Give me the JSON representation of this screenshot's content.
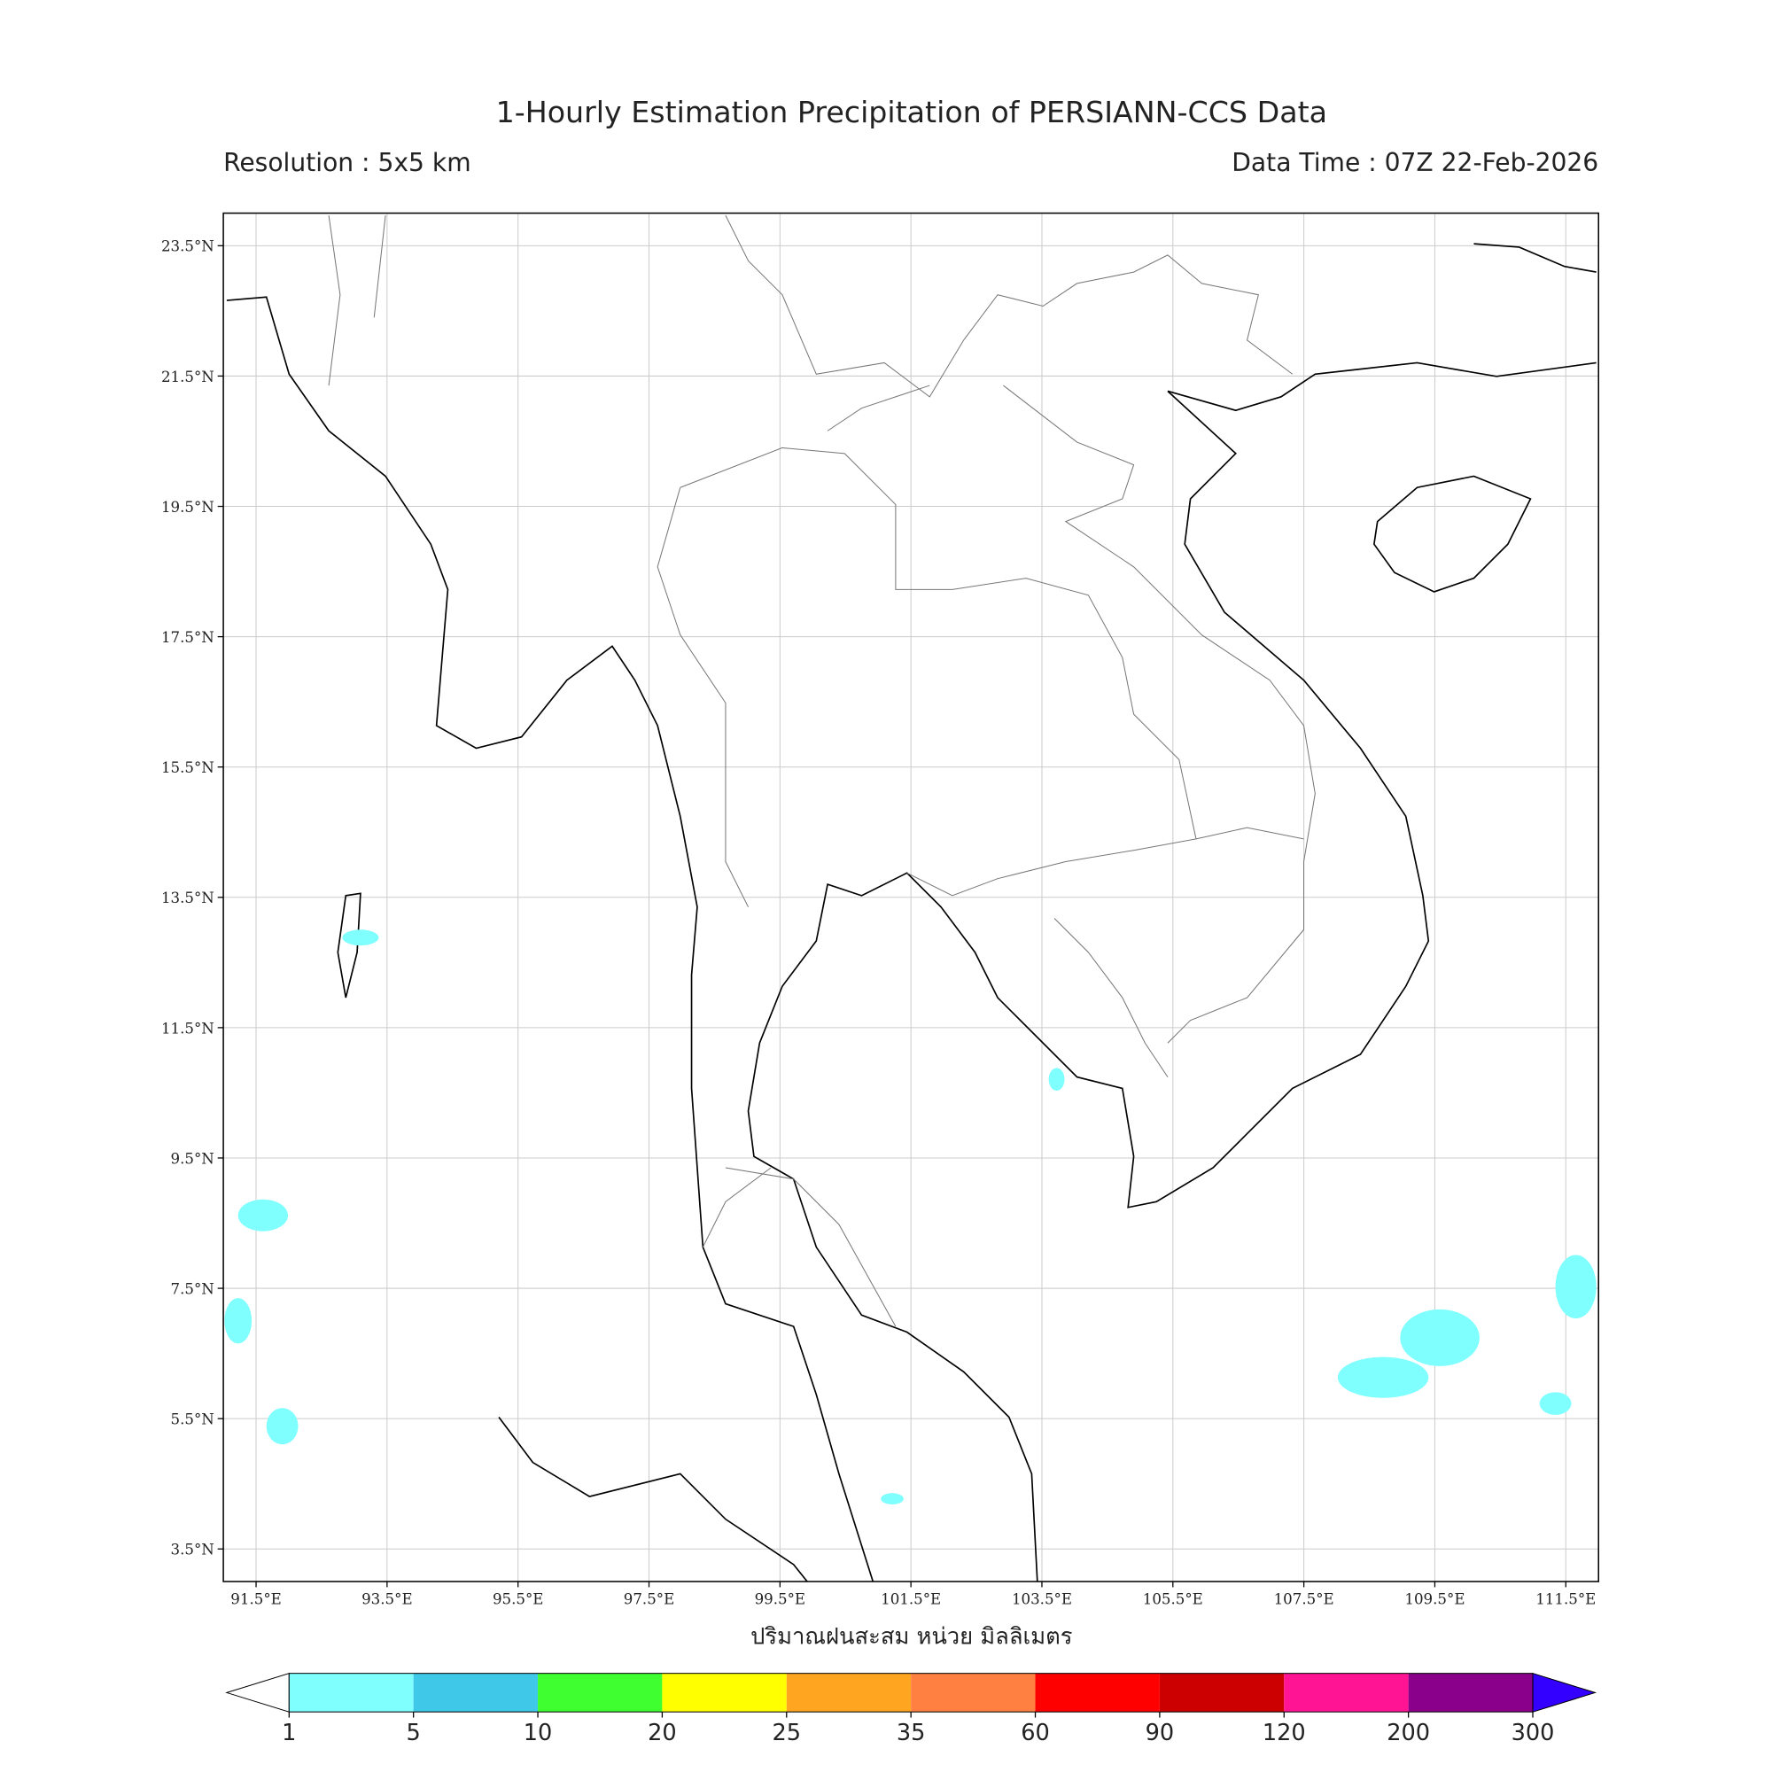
{
  "title": "1-Hourly Estimation Precipitation of PERSIANN-CCS Data",
  "subtitle_left": "Resolution : 5x5 km",
  "subtitle_right": "Data Time : 07Z 22-Feb-2026",
  "map": {
    "xlim": [
      91,
      112
    ],
    "ylim": [
      3,
      24
    ],
    "grid": true,
    "xticks": [
      {
        "value": 91.5,
        "label": "91.5°E"
      },
      {
        "value": 93.5,
        "label": "93.5°E"
      },
      {
        "value": 95.5,
        "label": "95.5°E"
      },
      {
        "value": 97.5,
        "label": "97.5°E"
      },
      {
        "value": 99.5,
        "label": "99.5°E"
      },
      {
        "value": 101.5,
        "label": "101.5°E"
      },
      {
        "value": 103.5,
        "label": "103.5°E"
      },
      {
        "value": 105.5,
        "label": "105.5°E"
      },
      {
        "value": 107.5,
        "label": "107.5°E"
      },
      {
        "value": 109.5,
        "label": "109.5°E"
      },
      {
        "value": 111.5,
        "label": "111.5°E"
      }
    ],
    "yticks": [
      {
        "value": 3.5,
        "label": "3.5°N"
      },
      {
        "value": 5.5,
        "label": "5.5°N"
      },
      {
        "value": 7.5,
        "label": "7.5°N"
      },
      {
        "value": 9.5,
        "label": "9.5°N"
      },
      {
        "value": 11.5,
        "label": "11.5°N"
      },
      {
        "value": 13.5,
        "label": "13.5°N"
      },
      {
        "value": 15.5,
        "label": "15.5°N"
      },
      {
        "value": 17.5,
        "label": "17.5°N"
      },
      {
        "value": 19.5,
        "label": "19.5°N"
      },
      {
        "value": 21.5,
        "label": "21.5°N"
      },
      {
        "value": 23.5,
        "label": "23.5°N"
      }
    ],
    "xlabel": "ปริมาณฝนสะสม หน่วย มิลลิเมตร"
  },
  "colorbar": {
    "levels": [
      1,
      5,
      10,
      20,
      25,
      35,
      60,
      90,
      120,
      200,
      300
    ],
    "colors": [
      "#80ffff",
      "#40c8e8",
      "#40ff30",
      "#ffff00",
      "#ffa520",
      "#ff8040",
      "#ff0000",
      "#cc0000",
      "#ff1493",
      "#8b008b"
    ],
    "under_color": "#ffffff",
    "over_color": "#3300ff"
  }
}
